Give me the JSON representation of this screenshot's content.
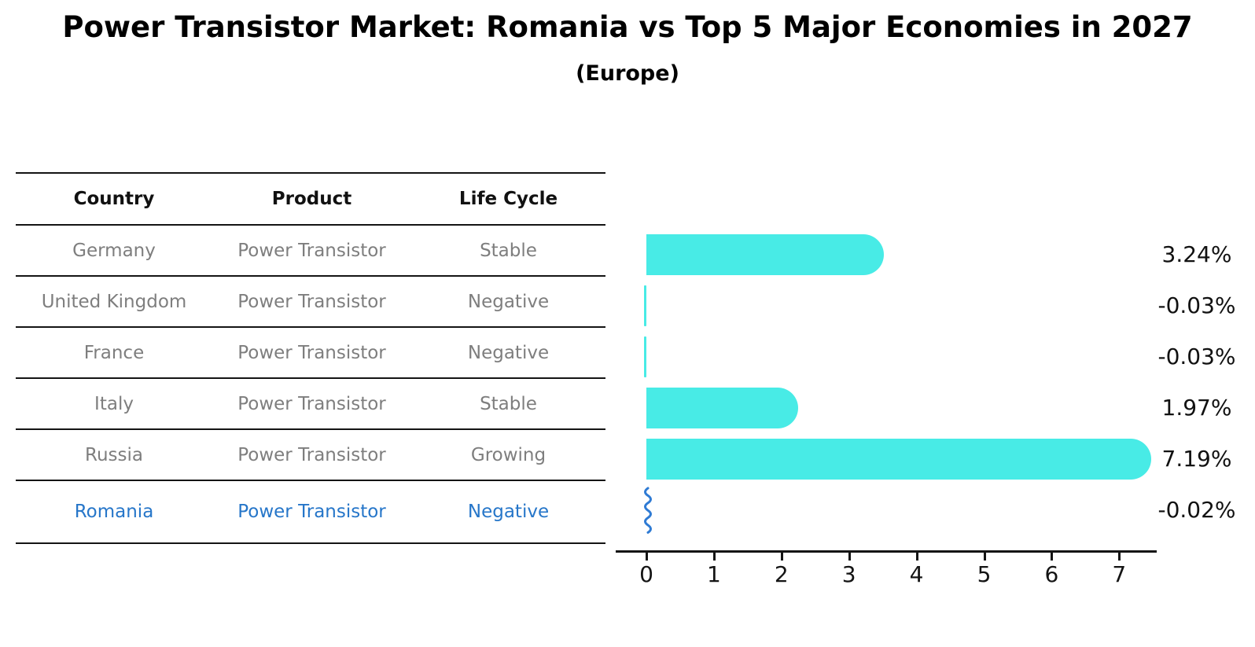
{
  "title": "Power Transistor Market: Romania vs Top 5 Major Economies in 2027",
  "subtitle": "(Europe)",
  "table": {
    "headers": [
      "Country",
      "Product",
      "Life Cycle"
    ],
    "rows": [
      {
        "country": "Germany",
        "product": "Power Transistor",
        "life_cycle": "Stable",
        "highlighted": false
      },
      {
        "country": "United Kingdom",
        "product": "Power Transistor",
        "life_cycle": "Negative",
        "highlighted": false
      },
      {
        "country": "France",
        "product": "Power Transistor",
        "life_cycle": "Negative",
        "highlighted": false
      },
      {
        "country": "Italy",
        "product": "Power Transistor",
        "life_cycle": "Stable",
        "highlighted": false
      },
      {
        "country": "Russia",
        "product": "Power Transistor",
        "life_cycle": "Growing",
        "highlighted": false
      },
      {
        "country": "Romania",
        "product": "Power Transistor",
        "life_cycle": "Negative",
        "highlighted": true
      }
    ]
  },
  "chart_data": {
    "type": "bar",
    "orientation": "horizontal",
    "title": "Power Transistor Market: Romania vs Top 5 Major Economies in 2027",
    "subtitle": "(Europe)",
    "categories": [
      "Germany",
      "United Kingdom",
      "France",
      "Italy",
      "Russia",
      "Romania"
    ],
    "values": [
      3.24,
      -0.03,
      -0.03,
      1.97,
      7.19,
      -0.02
    ],
    "labels": [
      "3.24%",
      "-0.03%",
      "-0.03%",
      "1.97%",
      "7.19%",
      "-0.02%"
    ],
    "x_ticks": [
      0,
      1,
      2,
      3,
      4,
      5,
      6,
      7
    ],
    "xlim": [
      -0.45,
      7.55
    ],
    "grid": false,
    "legend": "none",
    "bar_color": "#48ebe6",
    "highlight_color": "#2f7bd4",
    "highlight_index": 5,
    "text_color": "#111111",
    "muted_text_color": "#7e7e7e",
    "highlight_text_color": "#2676c9"
  }
}
